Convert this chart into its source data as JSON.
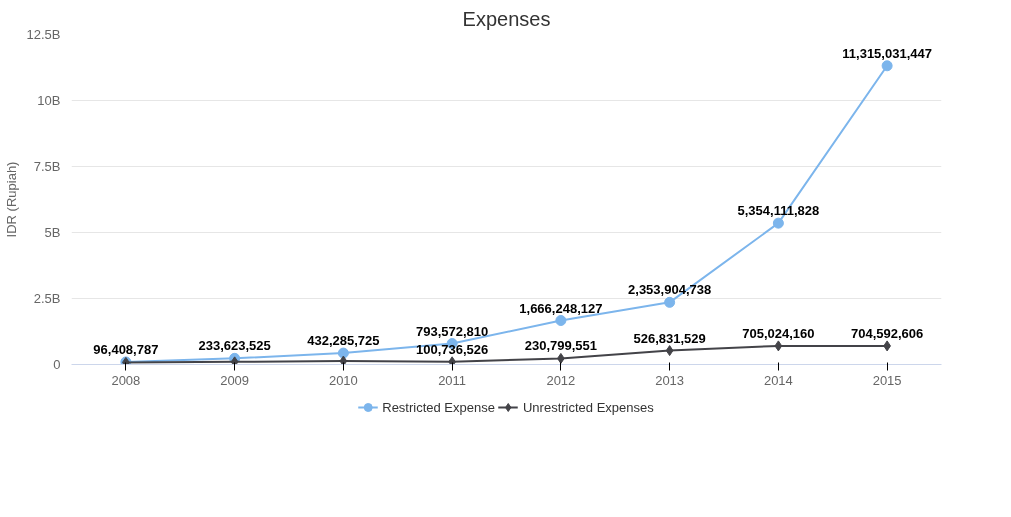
{
  "chart_data": {
    "type": "line",
    "title": "Expenses",
    "ylabel": "IDR (Rupiah)",
    "categories": [
      "2008",
      "2009",
      "2010",
      "2011",
      "2012",
      "2013",
      "2014",
      "2015"
    ],
    "series": [
      {
        "name": "Restricted Expense",
        "color": "#7cb5ec",
        "marker": "circle",
        "values": [
          96408787,
          233623525,
          432285725,
          793572810,
          1666248127,
          2353904738,
          5354111828,
          11315031447
        ],
        "value_labels": [
          "96,408,787",
          "233,623,525",
          "432,285,725",
          "793,572,810",
          "1,666,248,127",
          "2,353,904,738",
          "5,354,111,828",
          "11,315,031,447"
        ]
      },
      {
        "name": "Unrestricted Expenses",
        "color": "#434348",
        "marker": "diamond",
        "values": [
          80000000,
          100000000,
          130000000,
          100736526,
          230799551,
          526831529,
          705024160,
          704592606
        ],
        "value_labels": [
          null,
          null,
          null,
          "100,736,526",
          "230,799,551",
          "526,831,529",
          "705,024,160",
          "704,592,606"
        ]
      }
    ],
    "ylim": [
      0,
      12500000000
    ],
    "yticks": [
      0,
      {
        "value": 2500000000,
        "label": "2.5B"
      },
      {
        "value": 5000000000,
        "label": "5B"
      },
      {
        "value": 7500000000,
        "label": "7.5B"
      },
      {
        "value": 10000000000,
        "label": "10B"
      },
      {
        "value": 12500000000,
        "label": "12.5B"
      }
    ],
    "grid": "y",
    "legend": "bottom",
    "line_style": "solid"
  }
}
